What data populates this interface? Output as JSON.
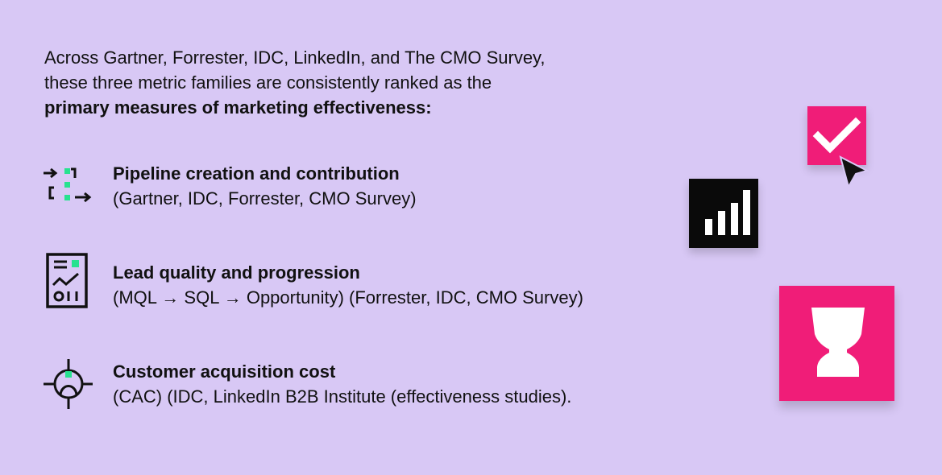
{
  "theme": {
    "background": "#d8c8f5",
    "accent_pink": "#f01d78",
    "accent_green": "#27e28f",
    "text": "#111111",
    "dark_tile": "#0a0a0a"
  },
  "intro": {
    "line1": "Across Gartner, Forrester, IDC, LinkedIn, and The CMO Survey,",
    "line2": "these three metric families are consistently ranked as the",
    "line3_bold": "primary measures of marketing effectiveness:"
  },
  "metrics": [
    {
      "icon": "pipeline-flow-icon",
      "title": "Pipeline creation and contribution",
      "sources": "(Gartner, IDC, Forrester, CMO Survey)"
    },
    {
      "icon": "report-chart-icon",
      "title": "Lead quality and progression",
      "sources": "(MQL → SQL → Opportunity) (Forrester, IDC, CMO Survey)"
    },
    {
      "icon": "target-crosshair-icon",
      "title": "Customer acquisition cost",
      "sources": "(CAC) (IDC, LinkedIn B2B Institute (effectiveness studies)."
    }
  ],
  "decorations": [
    {
      "icon": "checkmark-icon"
    },
    {
      "icon": "cursor-arrow-icon"
    },
    {
      "icon": "bar-chart-icon"
    },
    {
      "icon": "hourglass-icon"
    }
  ]
}
